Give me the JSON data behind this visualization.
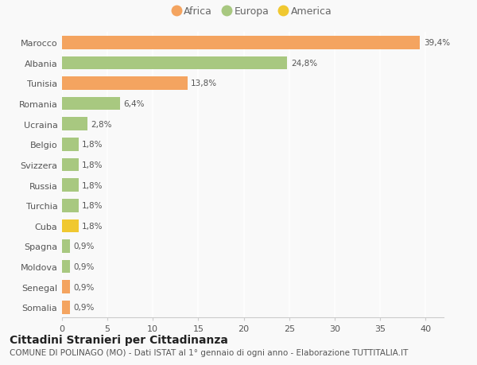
{
  "categories": [
    "Somalia",
    "Senegal",
    "Moldova",
    "Spagna",
    "Cuba",
    "Turchia",
    "Russia",
    "Svizzera",
    "Belgio",
    "Ucraina",
    "Romania",
    "Tunisia",
    "Albania",
    "Marocco"
  ],
  "values": [
    0.9,
    0.9,
    0.9,
    0.9,
    1.8,
    1.8,
    1.8,
    1.8,
    1.8,
    2.8,
    6.4,
    13.8,
    24.8,
    39.4
  ],
  "colors": [
    "#f4a460",
    "#f4a460",
    "#a8c880",
    "#a8c880",
    "#f0c830",
    "#a8c880",
    "#a8c880",
    "#a8c880",
    "#a8c880",
    "#a8c880",
    "#a8c880",
    "#f4a460",
    "#a8c880",
    "#f4a460"
  ],
  "labels": [
    "0,9%",
    "0,9%",
    "0,9%",
    "0,9%",
    "1,8%",
    "1,8%",
    "1,8%",
    "1,8%",
    "1,8%",
    "2,8%",
    "6,4%",
    "13,8%",
    "24,8%",
    "39,4%"
  ],
  "xlim": [
    0,
    42
  ],
  "xticks": [
    0,
    5,
    10,
    15,
    20,
    25,
    30,
    35,
    40
  ],
  "title": "Cittadini Stranieri per Cittadinanza",
  "subtitle": "COMUNE DI POLINAGO (MO) - Dati ISTAT al 1° gennaio di ogni anno - Elaborazione TUTTITALIA.IT",
  "legend": [
    {
      "label": "Africa",
      "color": "#f4a460"
    },
    {
      "label": "Europa",
      "color": "#a8c880"
    },
    {
      "label": "America",
      "color": "#f0c830"
    }
  ],
  "bg_color": "#f9f9f9",
  "bar_height": 0.65,
  "title_fontsize": 10,
  "subtitle_fontsize": 7.5,
  "label_fontsize": 7.5,
  "tick_fontsize": 8,
  "legend_fontsize": 9
}
